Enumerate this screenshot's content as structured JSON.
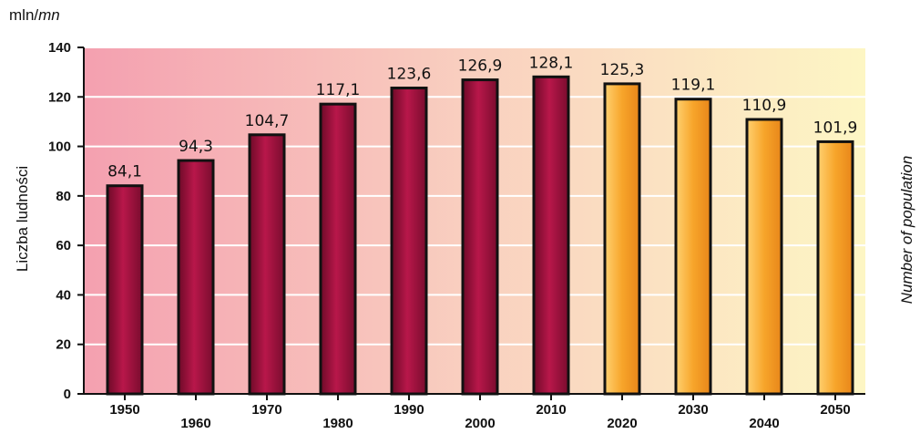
{
  "chart_data": {
    "type": "bar",
    "unit": "mln/",
    "unit_italic": "mn",
    "ylabel": "Liczba ludności",
    "ylabel_right": "Number of population",
    "ylim": [
      0,
      140
    ],
    "yticks": [
      0,
      20,
      40,
      60,
      80,
      100,
      120,
      140
    ],
    "grid": true,
    "categories": [
      "1950",
      "1960",
      "1970",
      "1980",
      "1990",
      "2000",
      "2010",
      "2020",
      "2030",
      "2040",
      "2050"
    ],
    "values": [
      84.1,
      94.3,
      104.7,
      117.1,
      123.6,
      126.9,
      128.1,
      125.3,
      119.1,
      110.9,
      101.9
    ],
    "value_labels": [
      "84,1",
      "94,3",
      "104,7",
      "117,1",
      "123,6",
      "126,9",
      "128,1",
      "125,3",
      "119,1",
      "110,9",
      "101,9"
    ],
    "bar_kind": [
      "historical",
      "historical",
      "historical",
      "historical",
      "historical",
      "historical",
      "historical",
      "projection",
      "projection",
      "projection",
      "projection"
    ],
    "colors": {
      "historical": "#a4123c",
      "projection": "#f5a020",
      "background_left": "#f4a0b0",
      "background_right": "#fdf6c4",
      "grid": "#ffffff",
      "axis": "#111111"
    }
  }
}
